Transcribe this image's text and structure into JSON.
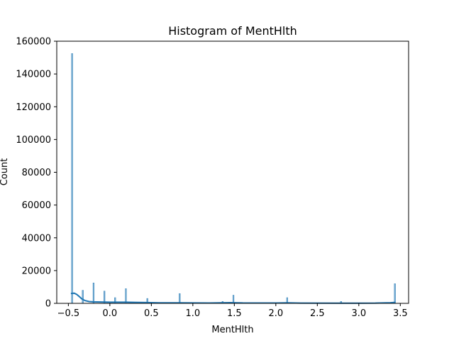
{
  "chart_data": {
    "type": "bar",
    "title": "Histogram of MentHlth",
    "xlabel": "MentHlth",
    "ylabel": "Count",
    "xlim": [
      -0.64,
      3.6
    ],
    "ylim": [
      0,
      160000
    ],
    "xticks": [
      -0.5,
      0.0,
      0.5,
      1.0,
      1.5,
      2.0,
      2.5,
      3.0,
      3.5
    ],
    "xtick_labels": [
      "−0.5",
      "0.0",
      "0.5",
      "1.0",
      "1.5",
      "2.0",
      "2.5",
      "3.0",
      "3.5"
    ],
    "yticks": [
      0,
      20000,
      40000,
      60000,
      80000,
      100000,
      120000,
      140000,
      160000
    ],
    "ytick_labels": [
      "0",
      "20000",
      "40000",
      "60000",
      "80000",
      "100000",
      "120000",
      "140000",
      "160000"
    ],
    "bar_color": "#1f77b4",
    "bars": [
      {
        "x": -0.455,
        "value": 152500
      },
      {
        "x": -0.326,
        "value": 8000
      },
      {
        "x": -0.196,
        "value": 12500
      },
      {
        "x": -0.066,
        "value": 7500
      },
      {
        "x": 0.063,
        "value": 3500
      },
      {
        "x": 0.193,
        "value": 9000
      },
      {
        "x": 0.452,
        "value": 3000
      },
      {
        "x": 0.841,
        "value": 6000
      },
      {
        "x": 1.359,
        "value": 1200
      },
      {
        "x": 1.489,
        "value": 5000
      },
      {
        "x": 2.137,
        "value": 3500
      },
      {
        "x": 2.786,
        "value": 1200
      },
      {
        "x": 3.435,
        "value": 12000
      }
    ],
    "kde": {
      "x": [
        -0.47,
        -0.43,
        -0.4,
        -0.37,
        -0.34,
        -0.3,
        -0.25,
        -0.2,
        -0.1,
        0.0,
        0.1,
        0.2,
        0.3,
        0.45,
        0.6,
        0.85,
        1.0,
        1.2,
        1.45,
        1.6,
        2.0,
        2.14,
        2.3,
        2.8,
        3.2,
        3.38,
        3.44
      ],
      "y": [
        6000,
        6200,
        5500,
        4200,
        2800,
        1700,
        1100,
        900,
        800,
        700,
        700,
        700,
        600,
        500,
        300,
        350,
        250,
        200,
        450,
        250,
        200,
        300,
        150,
        100,
        150,
        400,
        600
      ]
    }
  }
}
